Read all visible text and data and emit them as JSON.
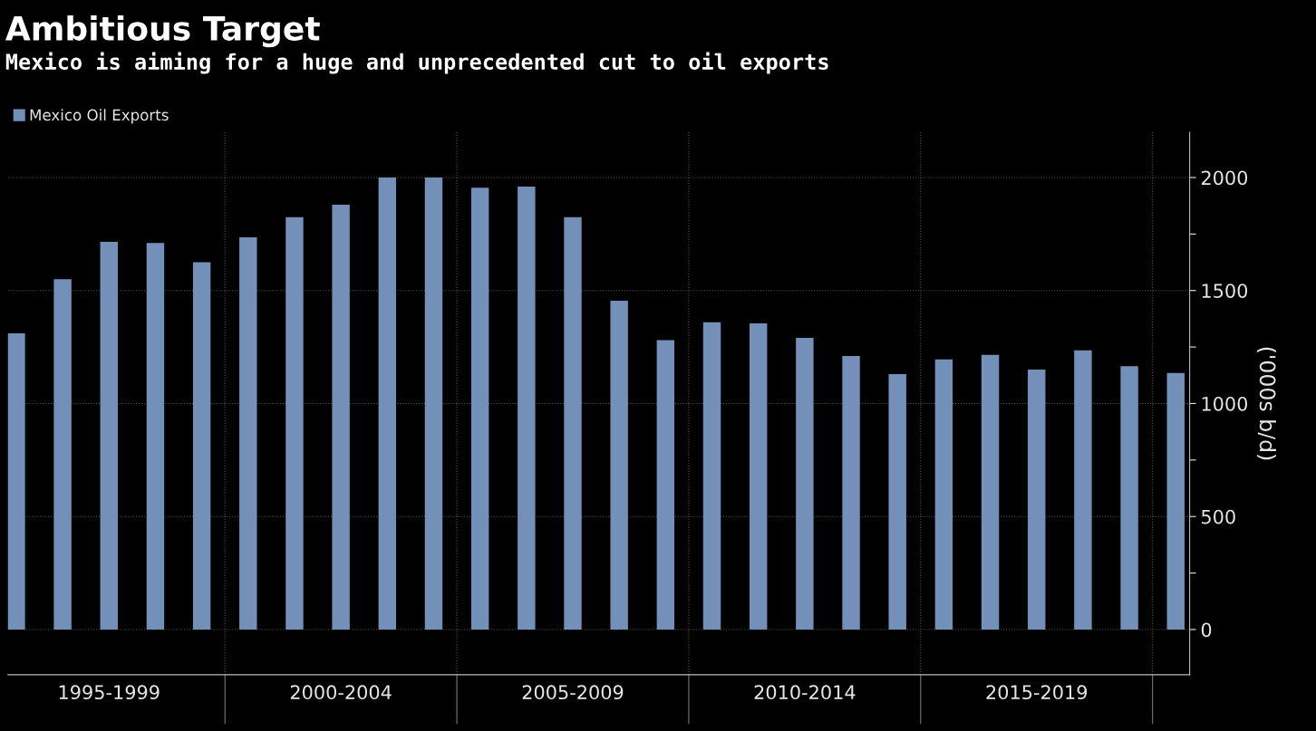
{
  "chart_data": {
    "type": "bar",
    "title": "Ambitious Target",
    "subtitle": "Mexico is aiming for a huge and unprecedented cut to oil exports",
    "ylabel": "('000s b/d)",
    "categories": [
      null,
      null,
      "1995-1999",
      null,
      null,
      null,
      null,
      "2000-2004",
      null,
      null,
      null,
      null,
      "2005-2009",
      null,
      null,
      null,
      null,
      "2010-2014",
      null,
      null,
      null,
      null,
      "2015-2019",
      null,
      null,
      null
    ],
    "series": [
      {
        "name": "Mexico Oil Exports",
        "color": "#7390b8",
        "values": [
          1310,
          1550,
          1715,
          1710,
          1625,
          1735,
          1825,
          1880,
          2000,
          2000,
          1955,
          1960,
          1825,
          1455,
          1280,
          1360,
          1355,
          1290,
          1210,
          1130,
          1195,
          1215,
          1150,
          1235,
          1165,
          1135
        ]
      }
    ],
    "ylim": [
      -200,
      2200
    ],
    "yticks": [
      0,
      {
        "value": 250,
        "label": null
      },
      500,
      {
        "value": 750,
        "label": null
      },
      1000,
      {
        "value": 1250,
        "label": null
      },
      1500,
      {
        "value": 1750,
        "label": null
      },
      2000
    ],
    "grid": true,
    "legend": "top left"
  }
}
